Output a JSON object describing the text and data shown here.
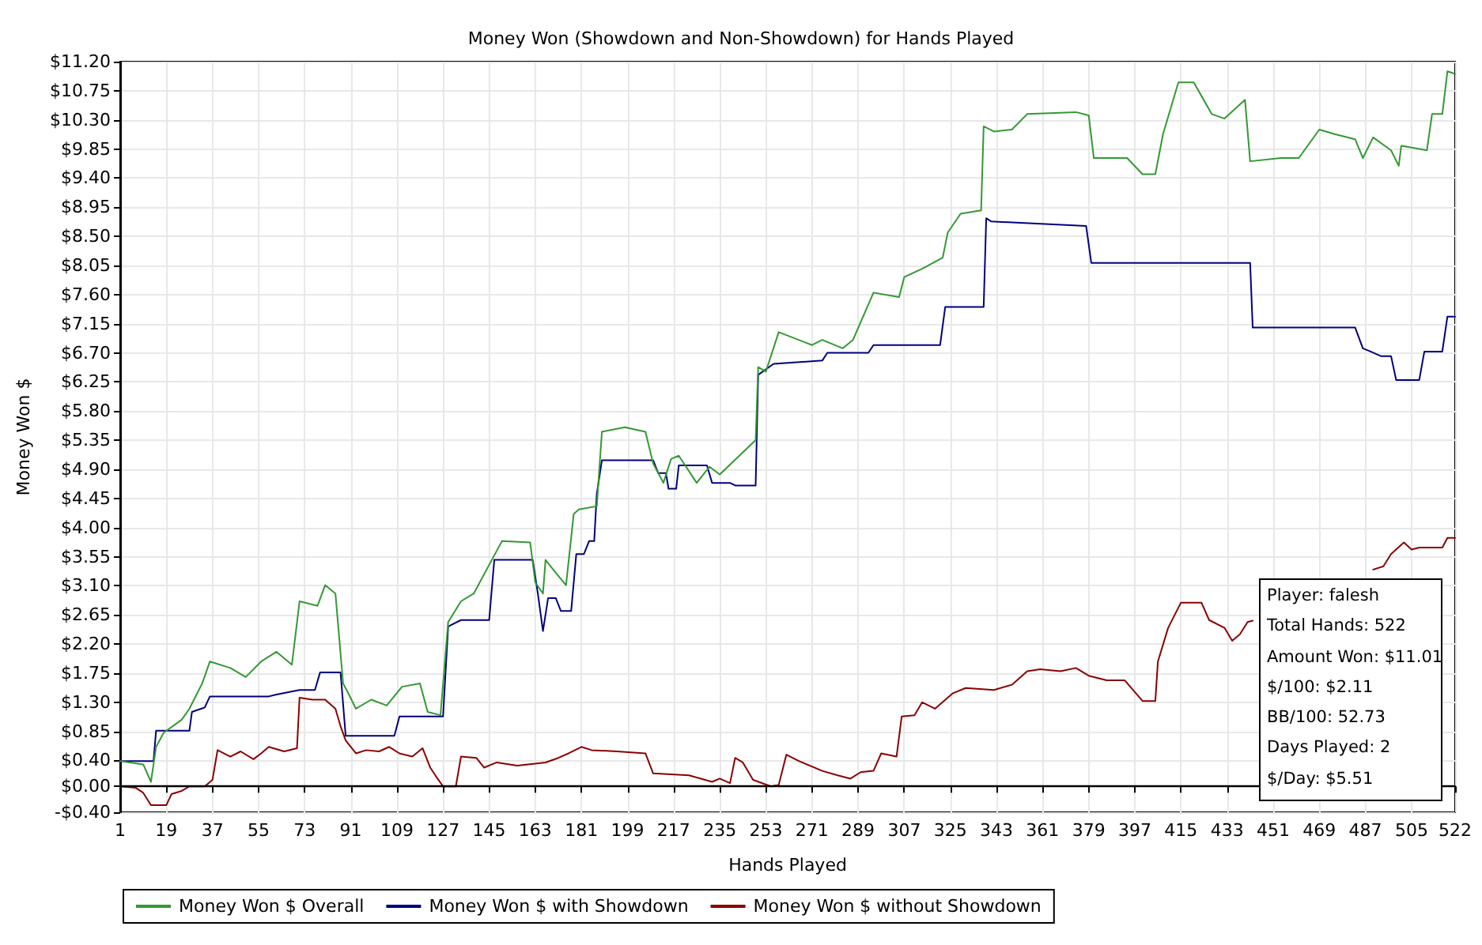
{
  "chart_data": {
    "type": "line",
    "title": "Money Won (Showdown and Non-Showdown) for Hands Played",
    "xlabel": "Hands Played",
    "ylabel": "Money Won $",
    "xlim": [
      1,
      522
    ],
    "xticks": [
      1,
      19,
      37,
      55,
      73,
      91,
      109,
      127,
      145,
      163,
      181,
      199,
      217,
      235,
      253,
      271,
      289,
      307,
      325,
      343,
      361,
      379,
      397,
      415,
      433,
      451,
      469,
      487,
      505,
      522
    ],
    "ylim": [
      -0.4,
      11.2
    ],
    "yticks": [
      {
        "value": -0.4,
        "label": "-$0.40"
      },
      {
        "value": 0,
        "label": "$0.00"
      },
      {
        "value": 0.4,
        "label": "$0.40"
      },
      {
        "value": 0.85,
        "label": "$0.85"
      },
      {
        "value": 1.3,
        "label": "$1.30"
      },
      {
        "value": 1.75,
        "label": "$1.75"
      },
      {
        "value": 2.2,
        "label": "$2.20"
      },
      {
        "value": 2.65,
        "label": "$2.65"
      },
      {
        "value": 3.1,
        "label": "$3.10"
      },
      {
        "value": 3.55,
        "label": "$3.55"
      },
      {
        "value": 4,
        "label": "$4.00"
      },
      {
        "value": 4.45,
        "label": "$4.45"
      },
      {
        "value": 4.9,
        "label": "$4.90"
      },
      {
        "value": 5.35,
        "label": "$5.35"
      },
      {
        "value": 5.8,
        "label": "$5.80"
      },
      {
        "value": 6.25,
        "label": "$6.25"
      },
      {
        "value": 6.7,
        "label": "$6.70"
      },
      {
        "value": 7.15,
        "label": "$7.15"
      },
      {
        "value": 7.6,
        "label": "$7.60"
      },
      {
        "value": 8.05,
        "label": "$8.05"
      },
      {
        "value": 8.5,
        "label": "$8.50"
      },
      {
        "value": 8.95,
        "label": "$8.95"
      },
      {
        "value": 9.4,
        "label": "$9.40"
      },
      {
        "value": 9.85,
        "label": "$9.85"
      },
      {
        "value": 10.3,
        "label": "$10.30"
      },
      {
        "value": 10.75,
        "label": "$10.75"
      },
      {
        "value": 11.2,
        "label": "$11.20"
      }
    ],
    "grid": true,
    "legend": "bottom",
    "ref_lines": [
      {
        "axis": "y",
        "value": 0,
        "color": "#000000"
      }
    ],
    "annotations": [
      "Player: falesh",
      "Total Hands: 522",
      "Amount Won: $11.01",
      "$/100: $2.11",
      "BB/100: 52.73",
      "Days Played: 2",
      "$/Day: $5.51"
    ],
    "series": [
      {
        "name": "Money Won $ Overall",
        "color": "#339933",
        "x": [
          1,
          10,
          13,
          15,
          18,
          25,
          28,
          33,
          36,
          44,
          50,
          56,
          62,
          68,
          71,
          78,
          81,
          85,
          88,
          90,
          93,
          99,
          105,
          111,
          118,
          121,
          126,
          129,
          134,
          139,
          144,
          150,
          161,
          163,
          166,
          167,
          171,
          175,
          178,
          180,
          187,
          189,
          198,
          206,
          209,
          213,
          216,
          219,
          226,
          231,
          235,
          249,
          250,
          253,
          258,
          271,
          275,
          283,
          287,
          295,
          305,
          307,
          314,
          322,
          324,
          329,
          337,
          338,
          342,
          349,
          355,
          374,
          379,
          381,
          394,
          400,
          405,
          408,
          414,
          420,
          427,
          432,
          440,
          442,
          454,
          461,
          469,
          475,
          483,
          486,
          490,
          497,
          500,
          501,
          511,
          513,
          517,
          519,
          522
        ],
        "values": [
          0.39,
          0.34,
          0.07,
          0.61,
          0.83,
          1.03,
          1.2,
          1.59,
          1.93,
          1.83,
          1.69,
          1.93,
          2.08,
          1.88,
          2.86,
          2.79,
          3.11,
          2.98,
          1.59,
          1.44,
          1.2,
          1.34,
          1.25,
          1.54,
          1.59,
          1.15,
          1.1,
          2.54,
          2.86,
          2.98,
          3.35,
          3.79,
          3.77,
          3.15,
          2.98,
          3.5,
          3.3,
          3.11,
          4.21,
          4.28,
          4.33,
          5.48,
          5.55,
          5.48,
          4.99,
          4.69,
          5.06,
          5.11,
          4.69,
          4.94,
          4.82,
          5.35,
          6.48,
          6.41,
          7.02,
          6.82,
          6.9,
          6.77,
          6.9,
          7.63,
          7.56,
          7.87,
          8.0,
          8.17,
          8.56,
          8.85,
          8.9,
          10.2,
          10.12,
          10.15,
          10.39,
          10.42,
          10.37,
          9.71,
          9.71,
          9.46,
          9.46,
          10.08,
          10.88,
          10.88,
          10.39,
          10.32,
          10.61,
          9.66,
          9.71,
          9.71,
          10.15,
          10.08,
          10.0,
          9.71,
          10.03,
          9.83,
          9.59,
          9.9,
          9.83,
          10.39,
          10.39,
          11.05,
          11.01
        ]
      },
      {
        "name": "Money Won $ with Showdown",
        "color": "#000080",
        "x": [
          1,
          14,
          15,
          28,
          29,
          34,
          36,
          59,
          62,
          71,
          77,
          79,
          87,
          89,
          108,
          110,
          127,
          129,
          134,
          145,
          147,
          162,
          164,
          166,
          168,
          171,
          173,
          177,
          179,
          182,
          184,
          186,
          187,
          189,
          209,
          211,
          214,
          215,
          218,
          219,
          230,
          232,
          239,
          241,
          249,
          250,
          256,
          275,
          277,
          293,
          295,
          321,
          323,
          338,
          339,
          341,
          378,
          380,
          442,
          443,
          483,
          486,
          489,
          493,
          497,
          499,
          508,
          510,
          517,
          519,
          522
        ],
        "values": [
          0.39,
          0.39,
          0.86,
          0.86,
          1.15,
          1.22,
          1.39,
          1.39,
          1.42,
          1.49,
          1.49,
          1.76,
          1.76,
          0.78,
          0.78,
          1.08,
          1.08,
          2.47,
          2.57,
          2.57,
          3.5,
          3.5,
          2.98,
          2.4,
          2.91,
          2.91,
          2.71,
          2.71,
          3.59,
          3.59,
          3.79,
          3.79,
          4.52,
          5.04,
          5.04,
          4.84,
          4.84,
          4.6,
          4.6,
          4.96,
          4.96,
          4.69,
          4.69,
          4.65,
          4.65,
          6.36,
          6.53,
          6.58,
          6.7,
          6.7,
          6.82,
          6.82,
          7.41,
          7.41,
          8.78,
          8.73,
          8.66,
          8.09,
          8.09,
          7.09,
          7.09,
          6.77,
          6.72,
          6.65,
          6.65,
          6.28,
          6.28,
          6.72,
          6.72,
          7.26,
          7.26
        ]
      },
      {
        "name": "Money Won $ without Showdown",
        "color": "#8b0000",
        "x": [
          1,
          7,
          10,
          13,
          19,
          21,
          25,
          28,
          34,
          37,
          39,
          44,
          48,
          53,
          56,
          59,
          65,
          70,
          71,
          76,
          81,
          85,
          87,
          89,
          93,
          97,
          102,
          106,
          110,
          115,
          119,
          122,
          124,
          127,
          132,
          134,
          140,
          143,
          148,
          156,
          167,
          172,
          176,
          181,
          185,
          195,
          206,
          209,
          223,
          232,
          235,
          239,
          241,
          244,
          248,
          255,
          258,
          261,
          266,
          275,
          281,
          286,
          290,
          295,
          298,
          304,
          306,
          311,
          314,
          319,
          326,
          331,
          342,
          349,
          355,
          360,
          368,
          374,
          379,
          386,
          393,
          400,
          405,
          406,
          410,
          415,
          423,
          426,
          432,
          435,
          438,
          441,
          443,
          470,
          490,
          494,
          497,
          502,
          505,
          508,
          517,
          519,
          522
        ],
        "values": [
          0.0,
          -0.02,
          -0.1,
          -0.29,
          -0.29,
          -0.12,
          -0.07,
          0.0,
          0.0,
          0.1,
          0.56,
          0.46,
          0.54,
          0.42,
          0.51,
          0.61,
          0.54,
          0.59,
          1.37,
          1.34,
          1.34,
          1.2,
          0.93,
          0.71,
          0.51,
          0.56,
          0.54,
          0.61,
          0.51,
          0.46,
          0.59,
          0.29,
          0.17,
          0.0,
          0.0,
          0.46,
          0.44,
          0.29,
          0.37,
          0.32,
          0.37,
          0.44,
          0.51,
          0.61,
          0.56,
          0.54,
          0.51,
          0.2,
          0.17,
          0.07,
          0.12,
          0.05,
          0.44,
          0.37,
          0.1,
          0.0,
          0.02,
          0.49,
          0.39,
          0.24,
          0.17,
          0.12,
          0.22,
          0.24,
          0.51,
          0.46,
          1.08,
          1.1,
          1.3,
          1.2,
          1.44,
          1.52,
          1.49,
          1.57,
          1.78,
          1.81,
          1.78,
          1.83,
          1.71,
          1.64,
          1.64,
          1.32,
          1.32,
          1.93,
          2.45,
          2.84,
          2.84,
          2.57,
          2.45,
          2.25,
          2.35,
          2.54,
          2.56,
          null,
          3.35,
          3.4,
          3.59,
          3.77,
          3.66,
          3.69,
          3.69,
          3.84,
          3.84
        ]
      }
    ]
  }
}
